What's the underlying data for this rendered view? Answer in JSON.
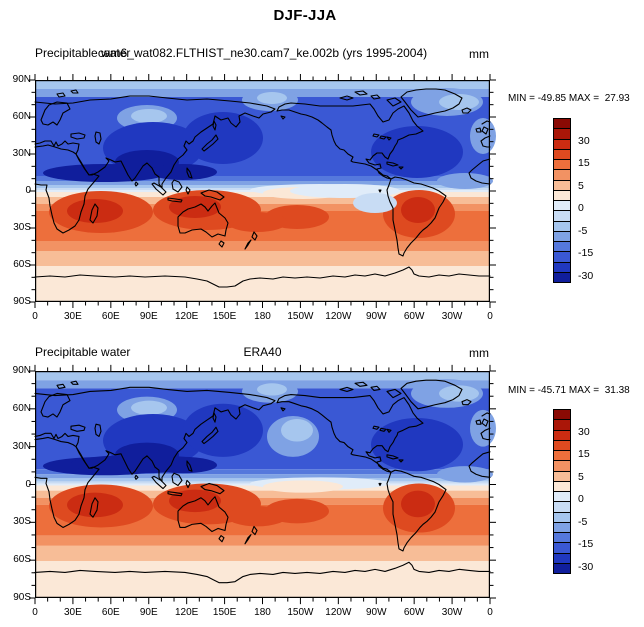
{
  "title": "DJF-JJA",
  "panels": [
    {
      "var_label": "Precipitable water",
      "case_title": "cam6_wat082.FLTHIST_ne30.cam7_ke.002b (yrs 1995-2004)",
      "units": "mm",
      "stats": "MIN = -49.85 MAX =  27.93"
    },
    {
      "var_label": "Precipitable water",
      "case_title": "ERA40",
      "units": "mm",
      "stats": "MIN = -45.71 MAX =  31.38"
    }
  ],
  "axes": {
    "lat_labels": [
      "90N",
      "60N",
      "30N",
      "0",
      "30S",
      "60S",
      "90S"
    ],
    "lon_labels": [
      "0",
      "30E",
      "60E",
      "90E",
      "120E",
      "150E",
      "180",
      "150W",
      "120W",
      "90W",
      "60W",
      "30W",
      "0"
    ]
  },
  "colorbar": {
    "labels": [
      "30",
      "15",
      "5",
      "0",
      "-5",
      "-15",
      "-30"
    ],
    "colors": [
      "#8A0A04",
      "#AA1608",
      "#CB2C12",
      "#DE4A20",
      "#ED6F3C",
      "#F29263",
      "#F7BD97",
      "#FBE8D7",
      "#E0ECF9",
      "#C8DCF4",
      "#A6C6EE",
      "#7FA2E4",
      "#5578DC",
      "#3A58D4",
      "#2038C0",
      "#101E9C"
    ]
  },
  "chart_data": [
    {
      "type": "heatmap",
      "title": "cam6_wat082.FLTHIST_ne30.cam7_ke.002b (yrs 1995-2004)",
      "variable": "Precipitable water",
      "units": "mm",
      "operation": "DJF-JJA seasonal difference",
      "min": -49.85,
      "max": 27.93,
      "colorbar_tick_labels": [
        30,
        15,
        5,
        0,
        -5,
        -15,
        -30
      ],
      "lat_ticks": [
        "90N",
        "60N",
        "30N",
        "0",
        "30S",
        "60S",
        "90S"
      ],
      "lon_ticks": [
        "0",
        "30E",
        "60E",
        "90E",
        "120E",
        "150E",
        "180",
        "150W",
        "120W",
        "90W",
        "60W",
        "30W",
        "0"
      ],
      "projection": "cylindrical equidistant, 0-360E",
      "pattern": "negative (blue) anomalies across the Northern Hemisphere with strongest minima over South Asia, NW Pacific and N Atlantic; positive (orange/red) anomalies across the Southern Hemisphere subtropics over southern Africa, Australia and South America"
    },
    {
      "type": "heatmap",
      "title": "ERA40",
      "variable": "Precipitable water",
      "units": "mm",
      "operation": "DJF-JJA seasonal difference",
      "min": -45.71,
      "max": 31.38,
      "colorbar_tick_labels": [
        30,
        15,
        5,
        0,
        -5,
        -15,
        -30
      ],
      "lat_ticks": [
        "90N",
        "60N",
        "30N",
        "0",
        "30S",
        "60S",
        "90S"
      ],
      "lon_ticks": [
        "0",
        "30E",
        "60E",
        "90E",
        "120E",
        "150E",
        "180",
        "150W",
        "120W",
        "90W",
        "60W",
        "30W",
        "0"
      ],
      "projection": "cylindrical equidistant, 0-360E",
      "pattern": "negative (blue) anomalies across the Northern Hemisphere, positive (orange/red) anomalies across the Southern Hemisphere subtropics"
    }
  ]
}
